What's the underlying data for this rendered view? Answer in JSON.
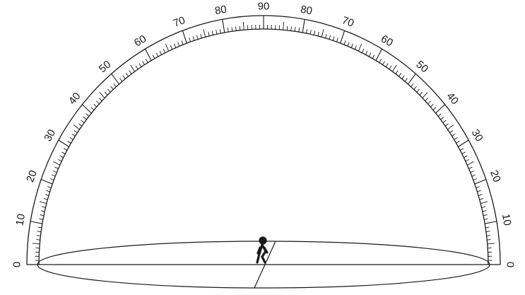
{
  "scale": {
    "labels_left": [
      "0",
      "10",
      "20",
      "30",
      "40",
      "50",
      "60",
      "70",
      "80",
      "90"
    ],
    "labels_right": [
      "80",
      "70",
      "60",
      "50",
      "40",
      "30",
      "20",
      "10",
      "0"
    ],
    "min_degrees": 0,
    "max_degrees": 90,
    "minor_tick_step": 1,
    "medium_tick_step": 5,
    "major_tick_step": 10
  },
  "figure": {
    "icon": "walking-person-icon"
  },
  "colors": {
    "ink": "#1a1a1a",
    "background": "#ffffff"
  }
}
